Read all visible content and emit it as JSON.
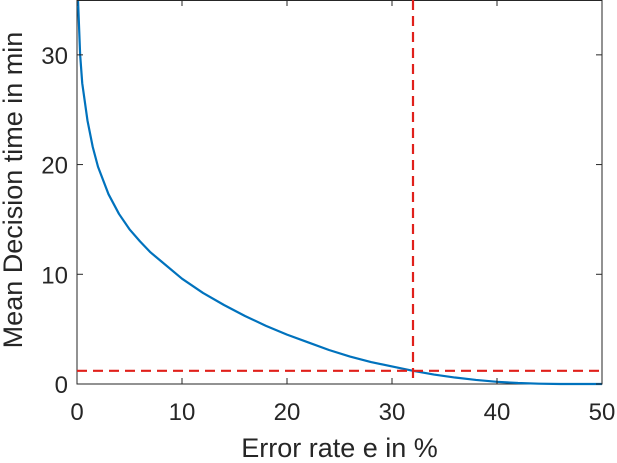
{
  "chart_data": {
    "type": "line",
    "xlabel": "Error rate e in %",
    "ylabel": "Mean Decision time in min",
    "xlim": [
      0,
      50
    ],
    "ylim": [
      0,
      35
    ],
    "xticks": [
      0,
      10,
      20,
      30,
      40,
      50
    ],
    "yticks": [
      0,
      10,
      20,
      30
    ],
    "xtick_labels": [
      "0",
      "10",
      "20",
      "30",
      "40",
      "50"
    ],
    "ytick_labels": [
      "0",
      "10",
      "20",
      "30"
    ],
    "grid": false,
    "box": true,
    "series": [
      {
        "color": "#0072bd",
        "style": "solid",
        "x": [
          0.1,
          0.3,
          0.5,
          1,
          1.5,
          2,
          3,
          4,
          5,
          6,
          7,
          8,
          10,
          12,
          14,
          16,
          18,
          20,
          22,
          24,
          26,
          28,
          30,
          32,
          34,
          36,
          38,
          40,
          42,
          44,
          46,
          48,
          50
        ],
        "y": [
          34.9,
          30.0,
          27.4,
          24.0,
          21.6,
          19.8,
          17.3,
          15.5,
          14.1,
          13.0,
          12.0,
          11.2,
          9.6,
          8.3,
          7.2,
          6.2,
          5.3,
          4.5,
          3.8,
          3.1,
          2.5,
          2.0,
          1.6,
          1.2,
          0.86,
          0.59,
          0.37,
          0.2,
          0.09,
          0.03,
          0.0,
          0.0,
          0.0
        ]
      }
    ],
    "reference_lines": [
      {
        "orientation": "vertical",
        "x": 32,
        "color": "#e0201b",
        "style": "dashed"
      },
      {
        "orientation": "horizontal",
        "y": 1.2,
        "color": "#e0201b",
        "style": "dashed"
      }
    ]
  }
}
